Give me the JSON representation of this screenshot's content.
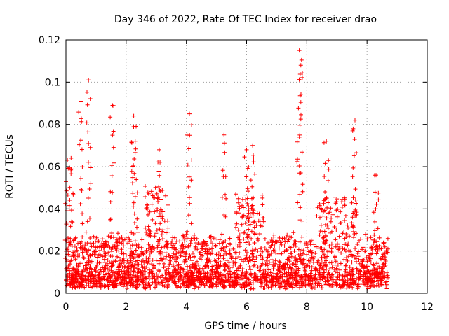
{
  "chart_data": {
    "type": "scatter",
    "title": "Day 346 of 2022, Rate Of TEC Index for receiver drao",
    "xlabel": "GPS time / hours",
    "ylabel": "ROTI / TECUs",
    "xlim": [
      0,
      12
    ],
    "ylim": [
      0,
      0.12
    ],
    "x_ticks": [
      "0",
      "2",
      "4",
      "6",
      "8",
      "10",
      "12"
    ],
    "y_ticks": [
      "0",
      "0.02",
      "0.04",
      "0.06",
      "0.08",
      "0.1",
      "0.12"
    ],
    "grid": true,
    "marker": "+",
    "color": "#ff0000",
    "data_x_range": [
      0,
      10.7
    ],
    "peaks": [
      {
        "x": 0.05,
        "y": 0.063
      },
      {
        "x": 0.17,
        "y": 0.064
      },
      {
        "x": 0.5,
        "y": 0.091
      },
      {
        "x": 0.75,
        "y": 0.101
      },
      {
        "x": 1.55,
        "y": 0.089
      },
      {
        "x": 2.25,
        "y": 0.084
      },
      {
        "x": 2.3,
        "y": 0.072
      },
      {
        "x": 3.1,
        "y": 0.068
      },
      {
        "x": 4.1,
        "y": 0.085
      },
      {
        "x": 5.25,
        "y": 0.075
      },
      {
        "x": 6.0,
        "y": 0.068
      },
      {
        "x": 6.2,
        "y": 0.07
      },
      {
        "x": 7.75,
        "y": 0.115
      },
      {
        "x": 7.8,
        "y": 0.108
      },
      {
        "x": 8.65,
        "y": 0.072
      },
      {
        "x": 9.6,
        "y": 0.082
      },
      {
        "x": 10.3,
        "y": 0.056
      }
    ]
  }
}
